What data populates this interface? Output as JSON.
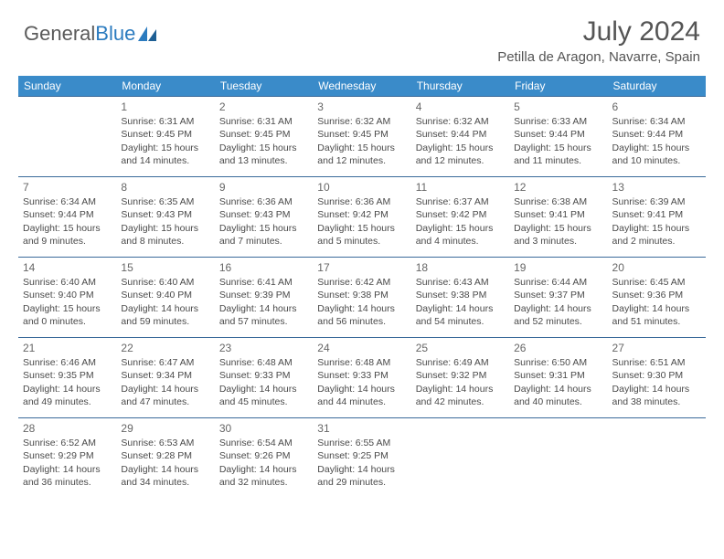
{
  "branding": {
    "word1": "General",
    "word2": "Blue",
    "logo_color": "#2b7bbf",
    "text_color": "#5a5a5a"
  },
  "header": {
    "month_title": "July 2024",
    "location": "Petilla de Aragon, Navarre, Spain"
  },
  "colors": {
    "header_bg": "#3a8bc9",
    "header_text": "#ffffff",
    "border": "#3a6a9a",
    "cell_text": "#4a4a4a"
  },
  "weekdays": [
    "Sunday",
    "Monday",
    "Tuesday",
    "Wednesday",
    "Thursday",
    "Friday",
    "Saturday"
  ],
  "weeks": [
    [
      null,
      {
        "n": "1",
        "sr": "Sunrise: 6:31 AM",
        "ss": "Sunset: 9:45 PM",
        "d1": "Daylight: 15 hours",
        "d2": "and 14 minutes."
      },
      {
        "n": "2",
        "sr": "Sunrise: 6:31 AM",
        "ss": "Sunset: 9:45 PM",
        "d1": "Daylight: 15 hours",
        "d2": "and 13 minutes."
      },
      {
        "n": "3",
        "sr": "Sunrise: 6:32 AM",
        "ss": "Sunset: 9:45 PM",
        "d1": "Daylight: 15 hours",
        "d2": "and 12 minutes."
      },
      {
        "n": "4",
        "sr": "Sunrise: 6:32 AM",
        "ss": "Sunset: 9:44 PM",
        "d1": "Daylight: 15 hours",
        "d2": "and 12 minutes."
      },
      {
        "n": "5",
        "sr": "Sunrise: 6:33 AM",
        "ss": "Sunset: 9:44 PM",
        "d1": "Daylight: 15 hours",
        "d2": "and 11 minutes."
      },
      {
        "n": "6",
        "sr": "Sunrise: 6:34 AM",
        "ss": "Sunset: 9:44 PM",
        "d1": "Daylight: 15 hours",
        "d2": "and 10 minutes."
      }
    ],
    [
      {
        "n": "7",
        "sr": "Sunrise: 6:34 AM",
        "ss": "Sunset: 9:44 PM",
        "d1": "Daylight: 15 hours",
        "d2": "and 9 minutes."
      },
      {
        "n": "8",
        "sr": "Sunrise: 6:35 AM",
        "ss": "Sunset: 9:43 PM",
        "d1": "Daylight: 15 hours",
        "d2": "and 8 minutes."
      },
      {
        "n": "9",
        "sr": "Sunrise: 6:36 AM",
        "ss": "Sunset: 9:43 PM",
        "d1": "Daylight: 15 hours",
        "d2": "and 7 minutes."
      },
      {
        "n": "10",
        "sr": "Sunrise: 6:36 AM",
        "ss": "Sunset: 9:42 PM",
        "d1": "Daylight: 15 hours",
        "d2": "and 5 minutes."
      },
      {
        "n": "11",
        "sr": "Sunrise: 6:37 AM",
        "ss": "Sunset: 9:42 PM",
        "d1": "Daylight: 15 hours",
        "d2": "and 4 minutes."
      },
      {
        "n": "12",
        "sr": "Sunrise: 6:38 AM",
        "ss": "Sunset: 9:41 PM",
        "d1": "Daylight: 15 hours",
        "d2": "and 3 minutes."
      },
      {
        "n": "13",
        "sr": "Sunrise: 6:39 AM",
        "ss": "Sunset: 9:41 PM",
        "d1": "Daylight: 15 hours",
        "d2": "and 2 minutes."
      }
    ],
    [
      {
        "n": "14",
        "sr": "Sunrise: 6:40 AM",
        "ss": "Sunset: 9:40 PM",
        "d1": "Daylight: 15 hours",
        "d2": "and 0 minutes."
      },
      {
        "n": "15",
        "sr": "Sunrise: 6:40 AM",
        "ss": "Sunset: 9:40 PM",
        "d1": "Daylight: 14 hours",
        "d2": "and 59 minutes."
      },
      {
        "n": "16",
        "sr": "Sunrise: 6:41 AM",
        "ss": "Sunset: 9:39 PM",
        "d1": "Daylight: 14 hours",
        "d2": "and 57 minutes."
      },
      {
        "n": "17",
        "sr": "Sunrise: 6:42 AM",
        "ss": "Sunset: 9:38 PM",
        "d1": "Daylight: 14 hours",
        "d2": "and 56 minutes."
      },
      {
        "n": "18",
        "sr": "Sunrise: 6:43 AM",
        "ss": "Sunset: 9:38 PM",
        "d1": "Daylight: 14 hours",
        "d2": "and 54 minutes."
      },
      {
        "n": "19",
        "sr": "Sunrise: 6:44 AM",
        "ss": "Sunset: 9:37 PM",
        "d1": "Daylight: 14 hours",
        "d2": "and 52 minutes."
      },
      {
        "n": "20",
        "sr": "Sunrise: 6:45 AM",
        "ss": "Sunset: 9:36 PM",
        "d1": "Daylight: 14 hours",
        "d2": "and 51 minutes."
      }
    ],
    [
      {
        "n": "21",
        "sr": "Sunrise: 6:46 AM",
        "ss": "Sunset: 9:35 PM",
        "d1": "Daylight: 14 hours",
        "d2": "and 49 minutes."
      },
      {
        "n": "22",
        "sr": "Sunrise: 6:47 AM",
        "ss": "Sunset: 9:34 PM",
        "d1": "Daylight: 14 hours",
        "d2": "and 47 minutes."
      },
      {
        "n": "23",
        "sr": "Sunrise: 6:48 AM",
        "ss": "Sunset: 9:33 PM",
        "d1": "Daylight: 14 hours",
        "d2": "and 45 minutes."
      },
      {
        "n": "24",
        "sr": "Sunrise: 6:48 AM",
        "ss": "Sunset: 9:33 PM",
        "d1": "Daylight: 14 hours",
        "d2": "and 44 minutes."
      },
      {
        "n": "25",
        "sr": "Sunrise: 6:49 AM",
        "ss": "Sunset: 9:32 PM",
        "d1": "Daylight: 14 hours",
        "d2": "and 42 minutes."
      },
      {
        "n": "26",
        "sr": "Sunrise: 6:50 AM",
        "ss": "Sunset: 9:31 PM",
        "d1": "Daylight: 14 hours",
        "d2": "and 40 minutes."
      },
      {
        "n": "27",
        "sr": "Sunrise: 6:51 AM",
        "ss": "Sunset: 9:30 PM",
        "d1": "Daylight: 14 hours",
        "d2": "and 38 minutes."
      }
    ],
    [
      {
        "n": "28",
        "sr": "Sunrise: 6:52 AM",
        "ss": "Sunset: 9:29 PM",
        "d1": "Daylight: 14 hours",
        "d2": "and 36 minutes."
      },
      {
        "n": "29",
        "sr": "Sunrise: 6:53 AM",
        "ss": "Sunset: 9:28 PM",
        "d1": "Daylight: 14 hours",
        "d2": "and 34 minutes."
      },
      {
        "n": "30",
        "sr": "Sunrise: 6:54 AM",
        "ss": "Sunset: 9:26 PM",
        "d1": "Daylight: 14 hours",
        "d2": "and 32 minutes."
      },
      {
        "n": "31",
        "sr": "Sunrise: 6:55 AM",
        "ss": "Sunset: 9:25 PM",
        "d1": "Daylight: 14 hours",
        "d2": "and 29 minutes."
      },
      null,
      null,
      null
    ]
  ]
}
